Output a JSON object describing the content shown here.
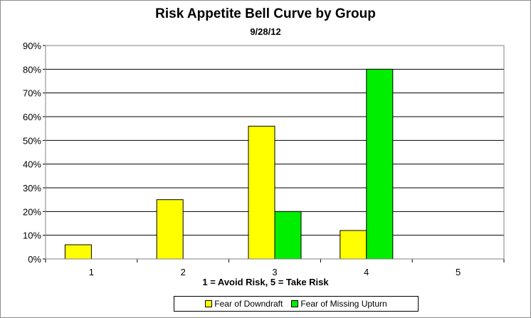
{
  "chart_data": {
    "type": "bar",
    "title": "Risk Appetite Bell Curve by Group",
    "subtitle": "9/28/12",
    "xlabel": "1 = Avoid Risk, 5 =  Take Risk",
    "ylabel": "",
    "categories": [
      "1",
      "2",
      "3",
      "4",
      "5"
    ],
    "ylim": [
      0,
      90
    ],
    "yticks": [
      0,
      10,
      20,
      30,
      40,
      50,
      60,
      70,
      80,
      90
    ],
    "ytick_labels": [
      "0%",
      "10%",
      "20%",
      "30%",
      "40%",
      "50%",
      "60%",
      "70%",
      "80%",
      "90%"
    ],
    "grid": true,
    "legend_position": "bottom",
    "series": [
      {
        "name": "Fear of Downdraft",
        "color": "#ffff00",
        "values": [
          6,
          25,
          56,
          12,
          0
        ]
      },
      {
        "name": "Fear of Missing Upturn",
        "color": "#00ee00",
        "values": [
          0,
          0,
          20,
          80,
          0
        ]
      }
    ]
  }
}
